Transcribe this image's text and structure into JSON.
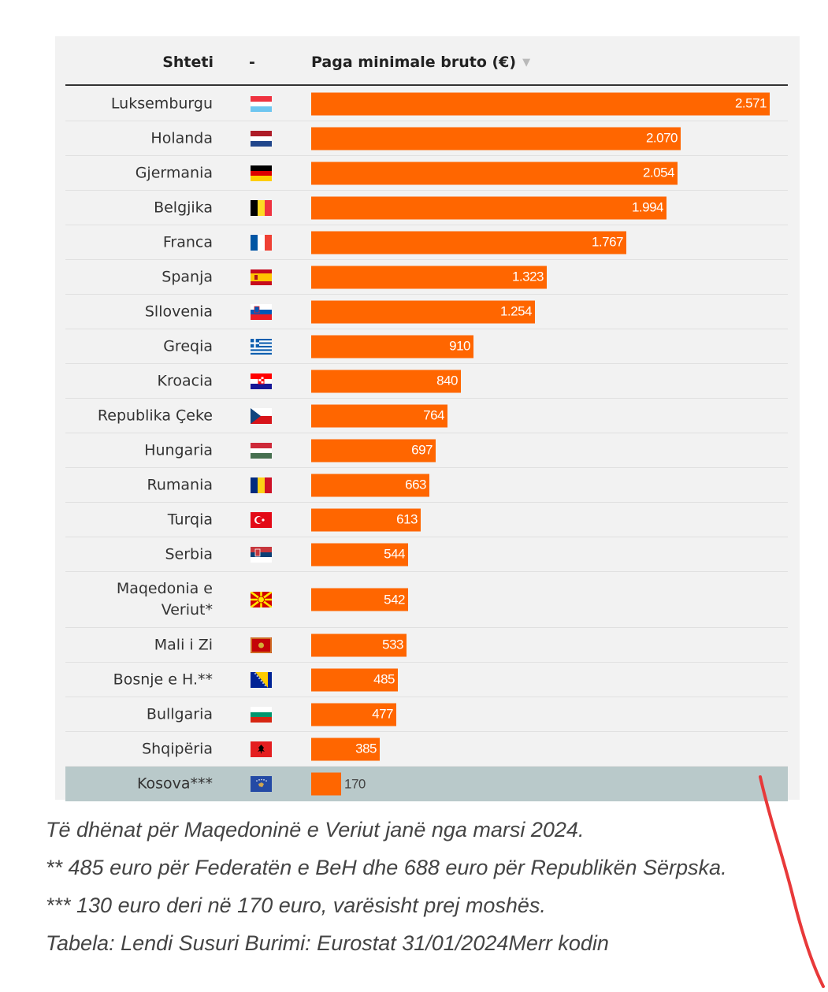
{
  "header": {
    "country_col": "Shteti",
    "flag_col": "-",
    "value_col": "Paga minimale bruto (€)",
    "sort_indicator": "▼"
  },
  "chart_data": {
    "type": "bar",
    "orientation": "horizontal",
    "bar_color": "#ff6600",
    "highlight_color": "#b9c9ca",
    "xlim": [
      0,
      2571
    ],
    "categories": [
      "Luksemburgu",
      "Holanda",
      "Gjermania",
      "Belgjika",
      "Franca",
      "Spanja",
      "Sllovenia",
      "Greqia",
      "Kroacia",
      "Republika Çeke",
      "Hungaria",
      "Rumania",
      "Turqia",
      "Serbia",
      "Maqedonia e Veriut*",
      "Mali i Zi",
      "Bosnje e H.**",
      "Bullgaria",
      "Shqipëria",
      "Kosova***"
    ],
    "values": [
      2571,
      2070,
      2054,
      1994,
      1767,
      1323,
      1254,
      910,
      840,
      764,
      697,
      663,
      613,
      544,
      542,
      533,
      485,
      477,
      385,
      170
    ],
    "value_labels": [
      "2.571",
      "2.070",
      "2.054",
      "1.994",
      "1.767",
      "1.323",
      "1.254",
      "910",
      "840",
      "764",
      "697",
      "663",
      "613",
      "544",
      "542",
      "533",
      "485",
      "477",
      "385",
      "170"
    ],
    "flags": [
      "lu-flag",
      "nl-flag",
      "de-flag",
      "be-flag",
      "fr-flag",
      "es-flag",
      "si-flag",
      "gr-flag",
      "hr-flag",
      "cz-flag",
      "hu-flag",
      "ro-flag",
      "tr-flag",
      "rs-flag",
      "mk-flag",
      "me-flag",
      "ba-flag",
      "bg-flag",
      "al-flag",
      "xk-flag"
    ],
    "highlighted": "Kosova***"
  },
  "notes": [
    "Të dhënat për Maqedoninë e Veriut janë nga marsi 2024.",
    "** 485 euro për Federatën e BeH dhe 688 euro për Republikën Sërpska.",
    "*** 130 euro deri në 170 euro, varësisht prej moshës.",
    "Tabela: Lendi Susuri Burimi: Eurostat 31/01/2024Merr kodin"
  ],
  "colors": {
    "bar": "#ff6600",
    "highlight_row": "#b9c9ca",
    "annotation_stroke": "#e8393a"
  }
}
